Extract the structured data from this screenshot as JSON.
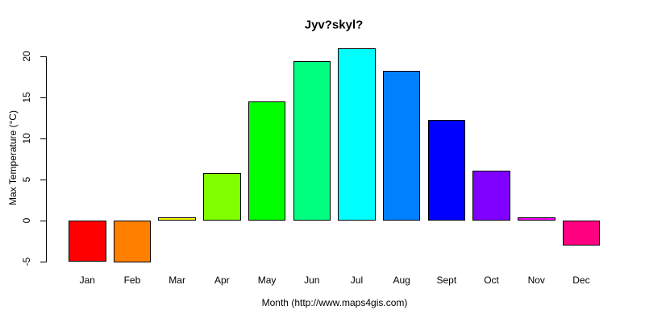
{
  "title": "Jyv?skyl?",
  "x_axis_title": "Month (http://www.maps4gis.com)",
  "y_axis_title": "Max Temperature (°C)",
  "chart_data": {
    "type": "bar",
    "title": "Jyv?skyl?",
    "xlabel": "Month (http://www.maps4gis.com)",
    "ylabel": "Max Temperature (°C)",
    "categories": [
      "Jan",
      "Feb",
      "Mar",
      "Apr",
      "May",
      "Jun",
      "Jul",
      "Aug",
      "Sept",
      "Oct",
      "Nov",
      "Dec"
    ],
    "values": [
      -5.0,
      -5.1,
      0.4,
      5.8,
      14.5,
      19.4,
      21.0,
      18.2,
      12.3,
      6.1,
      0.4,
      -3.0
    ],
    "bar_colors": [
      "#FF0000",
      "#FF8000",
      "#FFFF00",
      "#80FF00",
      "#00FF00",
      "#00FF80",
      "#00FFFF",
      "#0080FF",
      "#0000FF",
      "#8000FF",
      "#FF00FF",
      "#FF0080"
    ],
    "bar_border_color": "#000000",
    "yticks": [
      -5,
      0,
      5,
      10,
      15,
      20
    ],
    "ylim": [
      -5.1,
      21.0
    ],
    "grid": false,
    "legend": false,
    "background_color": "#FFFFFF",
    "text_color": "#000000"
  }
}
